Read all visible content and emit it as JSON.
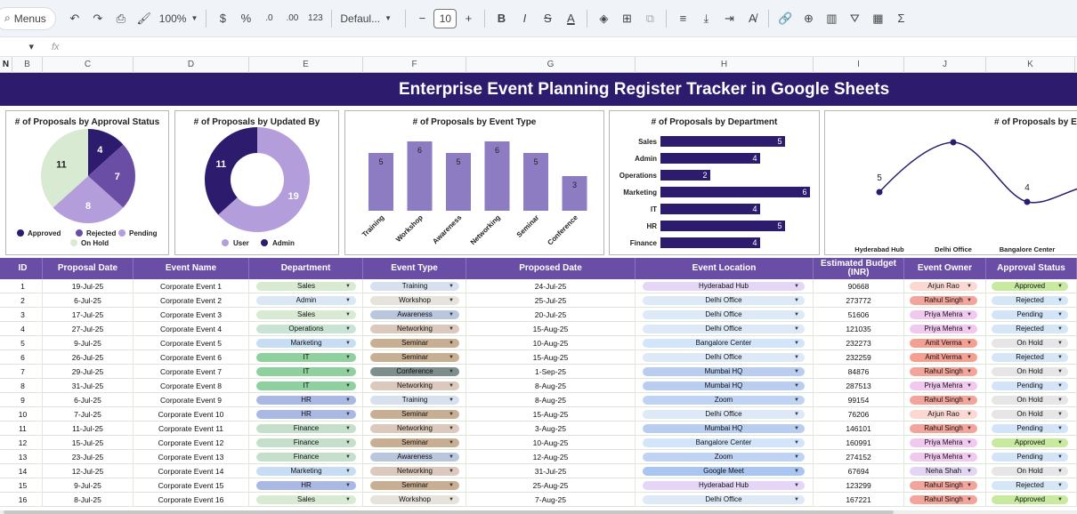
{
  "toolbar": {
    "menus_label": "Menus",
    "zoom": "100%",
    "currency": "$",
    "percent": "%",
    "dec_decrease": ".0",
    "dec_increase": ".00",
    "number_format": "123",
    "font": "Defaul...",
    "font_size": "10",
    "minus": "−",
    "plus": "+",
    "bold": "B",
    "italic": "I",
    "strike": "S",
    "text_color": "A"
  },
  "formula_bar": {
    "name_box": "",
    "fx": "fx"
  },
  "columns": [
    "N",
    "B",
    "C",
    "D",
    "E",
    "F",
    "G",
    "H",
    "I",
    "J",
    "K"
  ],
  "title": "Enterprise Event Planning Register Tracker in Google Sheets",
  "charts": [
    {
      "title": "# of Proposals by Approval Status",
      "type": "pie",
      "slices": [
        {
          "label": "Approved",
          "value": 4,
          "color": "#2d1b6e"
        },
        {
          "label": "Rejected",
          "value": 7,
          "color": "#6a4ea6"
        },
        {
          "label": "Pending",
          "value": 8,
          "color": "#b39ddb"
        },
        {
          "label": "On Hold",
          "value": 11,
          "color": "#d9ead3"
        }
      ]
    },
    {
      "title": "# of Proposals by Updated By",
      "type": "donut",
      "slices": [
        {
          "label": "User",
          "value": 19,
          "color": "#b39ddb"
        },
        {
          "label": "Admin",
          "value": 11,
          "color": "#2d1b6e"
        }
      ]
    },
    {
      "title": "# of Proposals by Event Type",
      "type": "bar",
      "categories": [
        "Training",
        "Workshop",
        "Awareness",
        "Networking",
        "Seminar",
        "Conference"
      ],
      "values": [
        5,
        6,
        5,
        6,
        5,
        3
      ],
      "color": "#8e7cc3"
    },
    {
      "title": "# of Proposals by Department",
      "type": "bar-horizontal",
      "categories": [
        "Sales",
        "Admin",
        "Operations",
        "Marketing",
        "IT",
        "HR",
        "Finance"
      ],
      "values": [
        5,
        4,
        2,
        6,
        4,
        5,
        4
      ],
      "color": "#2d1b6e"
    },
    {
      "title": "# of Proposals by Eve",
      "type": "line",
      "categories": [
        "Hyderabad Hub",
        "Delhi Office",
        "Bangalore Center"
      ],
      "values": [
        5,
        null,
        4
      ],
      "color": "#2d1b6e"
    }
  ],
  "table": {
    "headers": [
      "ID",
      "Proposal Date",
      "Event Name",
      "Department",
      "Event Type",
      "Proposed Date",
      "Event Location",
      "Estimated Budget (INR)",
      "Event Owner",
      "Approval Status"
    ],
    "rows": [
      [
        "1",
        "19-Jul-25",
        "Corporate Event 1",
        "Sales",
        "Training",
        "24-Jul-25",
        "Hyderabad Hub",
        "90668",
        "Arjun Rao",
        "Approved"
      ],
      [
        "2",
        "6-Jul-25",
        "Corporate Event 2",
        "Admin",
        "Workshop",
        "25-Jul-25",
        "Delhi Office",
        "273772",
        "Rahul Singh",
        "Rejected"
      ],
      [
        "3",
        "17-Jul-25",
        "Corporate Event 3",
        "Sales",
        "Awareness",
        "20-Jul-25",
        "Delhi Office",
        "51606",
        "Priya Mehra",
        "Pending"
      ],
      [
        "4",
        "27-Jul-25",
        "Corporate Event 4",
        "Operations",
        "Networking",
        "15-Aug-25",
        "Delhi Office",
        "121035",
        "Priya Mehra",
        "Rejected"
      ],
      [
        "5",
        "9-Jul-25",
        "Corporate Event 5",
        "Marketing",
        "Seminar",
        "10-Aug-25",
        "Bangalore Center",
        "232273",
        "Amit Verma",
        "On Hold"
      ],
      [
        "6",
        "26-Jul-25",
        "Corporate Event 6",
        "IT",
        "Seminar",
        "15-Aug-25",
        "Delhi Office",
        "232259",
        "Amit Verma",
        "Rejected"
      ],
      [
        "7",
        "29-Jul-25",
        "Corporate Event 7",
        "IT",
        "Conference",
        "1-Sep-25",
        "Mumbai HQ",
        "84876",
        "Rahul Singh",
        "On Hold"
      ],
      [
        "8",
        "31-Jul-25",
        "Corporate Event 8",
        "IT",
        "Networking",
        "8-Aug-25",
        "Mumbai HQ",
        "287513",
        "Priya Mehra",
        "Pending"
      ],
      [
        "9",
        "6-Jul-25",
        "Corporate Event 9",
        "HR",
        "Training",
        "8-Aug-25",
        "Zoom",
        "99154",
        "Rahul Singh",
        "On Hold"
      ],
      [
        "10",
        "7-Jul-25",
        "Corporate Event 10",
        "HR",
        "Seminar",
        "15-Aug-25",
        "Delhi Office",
        "76206",
        "Arjun Rao",
        "On Hold"
      ],
      [
        "11",
        "11-Jul-25",
        "Corporate Event 11",
        "Finance",
        "Networking",
        "3-Aug-25",
        "Mumbai HQ",
        "146101",
        "Rahul Singh",
        "Pending"
      ],
      [
        "12",
        "15-Jul-25",
        "Corporate Event 12",
        "Finance",
        "Seminar",
        "10-Aug-25",
        "Bangalore Center",
        "160991",
        "Priya Mehra",
        "Approved"
      ],
      [
        "13",
        "23-Jul-25",
        "Corporate Event 13",
        "Finance",
        "Awareness",
        "12-Aug-25",
        "Zoom",
        "274152",
        "Priya Mehra",
        "Pending"
      ],
      [
        "14",
        "12-Jul-25",
        "Corporate Event 14",
        "Marketing",
        "Networking",
        "31-Jul-25",
        "Google Meet",
        "67694",
        "Neha Shah",
        "On Hold"
      ],
      [
        "15",
        "9-Jul-25",
        "Corporate Event 15",
        "HR",
        "Seminar",
        "25-Aug-25",
        "Hyderabad Hub",
        "123299",
        "Rahul Singh",
        "Rejected"
      ],
      [
        "16",
        "8-Jul-25",
        "Corporate Event 16",
        "Sales",
        "Workshop",
        "7-Aug-25",
        "Delhi Office",
        "167221",
        "Rahul Singh",
        "Approved"
      ]
    ]
  },
  "chip_colors": {
    "department": {
      "Sales": "#d9ead3",
      "Admin": "#dbe7f5",
      "Operations": "#c9e4d4",
      "Marketing": "#c6ddf3",
      "IT": "#8fd19e",
      "HR": "#a9b9e3",
      "Finance": "#c5dfcb"
    },
    "event_type": {
      "Training": "#d6e0ef",
      "Workshop": "#e6e2dc",
      "Awareness": "#b8c6de",
      "Networking": "#dcc8bc",
      "Seminar": "#c8ae92",
      "Conference": "#7d8e8c"
    },
    "location": {
      "Hyderabad Hub": "#e5d5f7",
      "Delhi Office": "#dde9f7",
      "Bangalore Center": "#d2e5fb",
      "Mumbai HQ": "#b9cdf0",
      "Zoom": "#bfd3f4",
      "Google Meet": "#a9c5f2"
    },
    "owner": {
      "Arjun Rao": "#fbd8d2",
      "Rahul Singh": "#f4a59b",
      "Priya Mehra": "#f1c9f0",
      "Amit Verma": "#f59f93",
      "Neha Shah": "#e3d6f4"
    },
    "status": {
      "Approved": "#c7ea9f",
      "Rejected": "#d5e6f6",
      "Pending": "#d3e4f9",
      "On Hold": "#e6e6e6"
    }
  }
}
